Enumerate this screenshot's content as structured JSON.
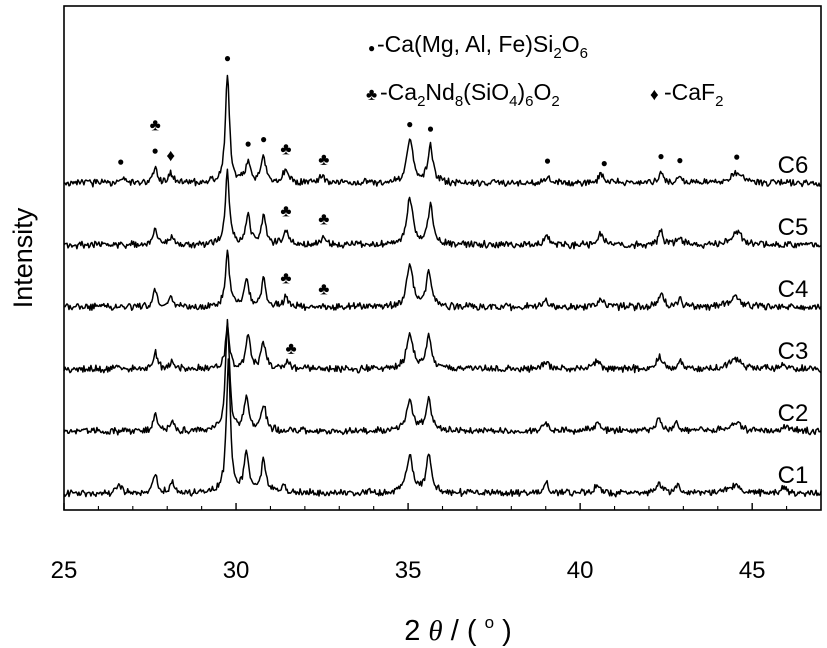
{
  "chart_data": {
    "type": "line",
    "xlabel": "2θ / (°)",
    "xlabel_parts": {
      "prefix": "2",
      "theta": "θ",
      "rest": " / (",
      "degree": "o",
      "close": ")"
    },
    "ylabel": "Intensity",
    "xlim": [
      25,
      47
    ],
    "x_ticks": [
      25,
      30,
      35,
      40,
      45
    ],
    "y_ticks_shown": false,
    "series_stacked": true,
    "series": [
      {
        "name": "C1",
        "baseline": 0,
        "peaks": [
          {
            "x": 26.6,
            "y": 8,
            "w": 0.07
          },
          {
            "x": 27.65,
            "y": 14,
            "w": 0.07
          },
          {
            "x": 28.15,
            "y": 8,
            "w": 0.07
          },
          {
            "x": 29.78,
            "y": 100,
            "w": 0.07
          },
          {
            "x": 30.3,
            "y": 30,
            "w": 0.08
          },
          {
            "x": 30.8,
            "y": 24,
            "w": 0.08
          },
          {
            "x": 31.4,
            "y": 5,
            "w": 0.07
          },
          {
            "x": 35.05,
            "y": 28,
            "w": 0.11
          },
          {
            "x": 35.6,
            "y": 28,
            "w": 0.09
          },
          {
            "x": 39.0,
            "y": 8,
            "w": 0.08
          },
          {
            "x": 40.5,
            "y": 6,
            "w": 0.1
          },
          {
            "x": 42.3,
            "y": 8,
            "w": 0.08
          },
          {
            "x": 42.8,
            "y": 6,
            "w": 0.08
          },
          {
            "x": 44.5,
            "y": 6,
            "w": 0.18
          },
          {
            "x": 45.9,
            "y": 4,
            "w": 0.08
          }
        ]
      },
      {
        "name": "C2",
        "baseline": 1,
        "peaks": [
          {
            "x": 27.65,
            "y": 13,
            "w": 0.07
          },
          {
            "x": 28.15,
            "y": 7,
            "w": 0.07
          },
          {
            "x": 29.75,
            "y": 84,
            "w": 0.07
          },
          {
            "x": 30.3,
            "y": 26,
            "w": 0.08
          },
          {
            "x": 30.8,
            "y": 20,
            "w": 0.08
          },
          {
            "x": 35.05,
            "y": 22,
            "w": 0.11
          },
          {
            "x": 35.6,
            "y": 24,
            "w": 0.09
          },
          {
            "x": 39.0,
            "y": 6,
            "w": 0.08
          },
          {
            "x": 40.5,
            "y": 5,
            "w": 0.1
          },
          {
            "x": 42.3,
            "y": 10,
            "w": 0.08
          },
          {
            "x": 42.8,
            "y": 6,
            "w": 0.08
          },
          {
            "x": 44.5,
            "y": 7,
            "w": 0.18
          },
          {
            "x": 46.0,
            "y": 5,
            "w": 0.08
          }
        ]
      },
      {
        "name": "C3",
        "baseline": 2,
        "peaks": [
          {
            "x": 27.65,
            "y": 13,
            "w": 0.07
          },
          {
            "x": 28.15,
            "y": 7,
            "w": 0.07
          },
          {
            "x": 29.75,
            "y": 32,
            "w": 0.07
          },
          {
            "x": 30.35,
            "y": 24,
            "w": 0.08
          },
          {
            "x": 30.8,
            "y": 20,
            "w": 0.08
          },
          {
            "x": 31.5,
            "y": 6,
            "w": 0.07
          },
          {
            "x": 35.05,
            "y": 26,
            "w": 0.11
          },
          {
            "x": 35.6,
            "y": 26,
            "w": 0.09
          },
          {
            "x": 39.0,
            "y": 6,
            "w": 0.08
          },
          {
            "x": 40.5,
            "y": 6,
            "w": 0.1
          },
          {
            "x": 42.3,
            "y": 10,
            "w": 0.08
          },
          {
            "x": 42.9,
            "y": 6,
            "w": 0.08
          },
          {
            "x": 44.5,
            "y": 8,
            "w": 0.18
          },
          {
            "x": 45.9,
            "y": 4,
            "w": 0.08
          }
        ]
      },
      {
        "name": "C4",
        "baseline": 3,
        "peaks": [
          {
            "x": 27.65,
            "y": 13,
            "w": 0.07
          },
          {
            "x": 28.1,
            "y": 7,
            "w": 0.07
          },
          {
            "x": 29.75,
            "y": 42,
            "w": 0.07
          },
          {
            "x": 30.3,
            "y": 22,
            "w": 0.08
          },
          {
            "x": 30.8,
            "y": 20,
            "w": 0.08
          },
          {
            "x": 31.45,
            "y": 8,
            "w": 0.07
          },
          {
            "x": 35.05,
            "y": 32,
            "w": 0.11
          },
          {
            "x": 35.6,
            "y": 26,
            "w": 0.09
          },
          {
            "x": 39.0,
            "y": 6,
            "w": 0.08
          },
          {
            "x": 40.6,
            "y": 6,
            "w": 0.1
          },
          {
            "x": 42.35,
            "y": 10,
            "w": 0.08
          },
          {
            "x": 42.9,
            "y": 6,
            "w": 0.08
          },
          {
            "x": 44.5,
            "y": 8,
            "w": 0.18
          }
        ]
      },
      {
        "name": "C5",
        "baseline": 4,
        "peaks": [
          {
            "x": 27.65,
            "y": 13,
            "w": 0.07
          },
          {
            "x": 28.15,
            "y": 6,
            "w": 0.07
          },
          {
            "x": 29.75,
            "y": 56,
            "w": 0.07
          },
          {
            "x": 30.35,
            "y": 22,
            "w": 0.08
          },
          {
            "x": 30.8,
            "y": 22,
            "w": 0.08
          },
          {
            "x": 31.45,
            "y": 12,
            "w": 0.08
          },
          {
            "x": 32.55,
            "y": 6,
            "w": 0.08
          },
          {
            "x": 35.05,
            "y": 34,
            "w": 0.11
          },
          {
            "x": 35.65,
            "y": 30,
            "w": 0.09
          },
          {
            "x": 39.05,
            "y": 7,
            "w": 0.08
          },
          {
            "x": 40.6,
            "y": 8,
            "w": 0.1
          },
          {
            "x": 42.35,
            "y": 10,
            "w": 0.08
          },
          {
            "x": 42.9,
            "y": 6,
            "w": 0.08
          },
          {
            "x": 44.55,
            "y": 10,
            "w": 0.18
          }
        ]
      },
      {
        "name": "C6",
        "baseline": 5,
        "peaks": [
          {
            "x": 26.65,
            "y": 4,
            "w": 0.07
          },
          {
            "x": 27.65,
            "y": 12,
            "w": 0.07
          },
          {
            "x": 28.1,
            "y": 7,
            "w": 0.07
          },
          {
            "x": 29.75,
            "y": 82,
            "w": 0.07
          },
          {
            "x": 30.35,
            "y": 16,
            "w": 0.08
          },
          {
            "x": 30.8,
            "y": 20,
            "w": 0.08
          },
          {
            "x": 31.45,
            "y": 12,
            "w": 0.08
          },
          {
            "x": 32.5,
            "y": 6,
            "w": 0.08
          },
          {
            "x": 35.05,
            "y": 32,
            "w": 0.11
          },
          {
            "x": 35.65,
            "y": 28,
            "w": 0.09
          },
          {
            "x": 39.05,
            "y": 5,
            "w": 0.08
          },
          {
            "x": 40.6,
            "y": 6,
            "w": 0.1
          },
          {
            "x": 42.35,
            "y": 8,
            "w": 0.08
          },
          {
            "x": 42.9,
            "y": 5,
            "w": 0.08
          },
          {
            "x": 44.55,
            "y": 8,
            "w": 0.18
          }
        ]
      }
    ],
    "legend": [
      {
        "symbol": "●",
        "symbol_name": "circle-marker",
        "parts": [
          {
            "t": "-Ca(Mg, Al, Fe)Si"
          },
          {
            "t": "2",
            "sub": true
          },
          {
            "t": "O"
          },
          {
            "t": "6",
            "sub": true
          }
        ]
      },
      {
        "symbol": "♣",
        "symbol_name": "club-marker",
        "parts": [
          {
            "t": "-Ca"
          },
          {
            "t": "2",
            "sub": true
          },
          {
            "t": "Nd"
          },
          {
            "t": "8",
            "sub": true
          },
          {
            "t": "(SiO"
          },
          {
            "t": "4",
            "sub": true
          },
          {
            "t": ")"
          },
          {
            "t": "6",
            "sub": true
          },
          {
            "t": "O"
          },
          {
            "t": "2",
            "sub": true
          }
        ]
      },
      {
        "symbol": "♦",
        "symbol_name": "diamond-marker",
        "parts": [
          {
            "t": "-CaF"
          },
          {
            "t": "2",
            "sub": true
          }
        ]
      }
    ],
    "peak_markers": [
      {
        "series": "C6",
        "symbol": "●",
        "x": 26.65
      },
      {
        "series": "C6",
        "symbol": "●",
        "x": 27.65
      },
      {
        "series": "C6",
        "symbol": "♣",
        "x": 27.65
      },
      {
        "series": "C6",
        "symbol": "♦",
        "x": 28.1
      },
      {
        "series": "C6",
        "symbol": "●",
        "x": 29.75
      },
      {
        "series": "C6",
        "symbol": "●",
        "x": 30.35
      },
      {
        "series": "C6",
        "symbol": "●",
        "x": 30.8
      },
      {
        "series": "C6",
        "symbol": "♣",
        "x": 31.45
      },
      {
        "series": "C6",
        "symbol": "♣",
        "x": 32.55
      },
      {
        "series": "C6",
        "symbol": "●",
        "x": 35.05
      },
      {
        "series": "C6",
        "symbol": "●",
        "x": 35.65
      },
      {
        "series": "C6",
        "symbol": "●",
        "x": 39.05
      },
      {
        "series": "C6",
        "symbol": "●",
        "x": 40.7
      },
      {
        "series": "C6",
        "symbol": "●",
        "x": 42.35
      },
      {
        "series": "C6",
        "symbol": "●",
        "x": 42.9
      },
      {
        "series": "C6",
        "symbol": "●",
        "x": 44.55
      },
      {
        "series": "C5",
        "symbol": "♣",
        "x": 31.45
      },
      {
        "series": "C5",
        "symbol": "♣",
        "x": 32.55
      },
      {
        "series": "C4",
        "symbol": "♣",
        "x": 31.45
      },
      {
        "series": "C4",
        "symbol": "♣",
        "x": 32.55
      },
      {
        "series": "C3",
        "symbol": "♣",
        "x": 31.6
      }
    ]
  }
}
